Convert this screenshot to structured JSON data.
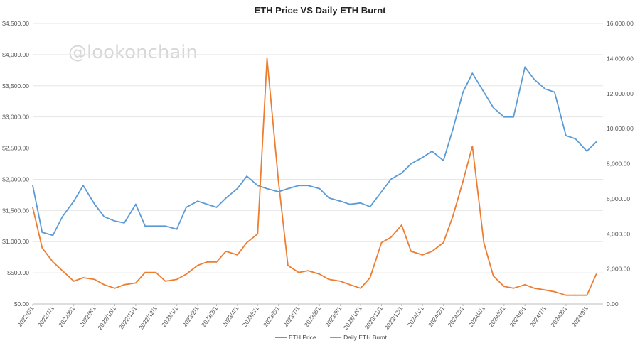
{
  "chart_data": {
    "type": "line",
    "title": "ETH Price VS Daily ETH Burnt",
    "watermark": "@lookonchain",
    "x": [
      "2022/6/1",
      "2022/6/15",
      "2022/7/1",
      "2022/7/15",
      "2022/8/1",
      "2022/8/15",
      "2022/9/1",
      "2022/9/15",
      "2022/10/1",
      "2022/10/15",
      "2022/11/1",
      "2022/11/15",
      "2022/12/1",
      "2022/12/15",
      "2023/1/1",
      "2023/1/15",
      "2023/2/1",
      "2023/2/15",
      "2023/3/1",
      "2023/3/15",
      "2023/4/1",
      "2023/4/15",
      "2023/5/1",
      "2023/5/15",
      "2023/6/1",
      "2023/6/15",
      "2023/7/1",
      "2023/7/15",
      "2023/8/1",
      "2023/8/15",
      "2023/9/1",
      "2023/9/15",
      "2023/10/1",
      "2023/10/15",
      "2023/11/1",
      "2023/11/15",
      "2023/12/1",
      "2023/12/15",
      "2024/1/1",
      "2024/1/15",
      "2024/2/1",
      "2024/2/15",
      "2024/3/1",
      "2024/3/15",
      "2024/4/1",
      "2024/4/15",
      "2024/5/1",
      "2024/5/15",
      "2024/6/1",
      "2024/6/15",
      "2024/7/1",
      "2024/7/15",
      "2024/8/1",
      "2024/8/15",
      "2024/9/1",
      "2024/9/15"
    ],
    "x_tick_labels": [
      "2022/6/1",
      "2022/7/1",
      "2022/8/1",
      "2022/9/1",
      "2022/10/1",
      "2022/11/1",
      "2022/12/1",
      "2023/1/1",
      "2023/2/1",
      "2023/3/1",
      "2023/4/1",
      "2023/5/1",
      "2023/6/1",
      "2023/7/1",
      "2023/8/1",
      "2023/9/1",
      "2023/10/1",
      "2023/11/1",
      "2023/12/1",
      "2024/1/1",
      "2024/2/1",
      "2024/3/1",
      "2024/4/1",
      "2024/5/1",
      "2024/6/1",
      "2024/7/1",
      "2024/8/1",
      "2024/9/1"
    ],
    "y_left": {
      "min": 0,
      "max": 4500,
      "ticks": [
        "$0.00",
        "$500.00",
        "$1,000.00",
        "$1,500.00",
        "$2,000.00",
        "$2,500.00",
        "$3,000.00",
        "$3,500.00",
        "$4,000.00",
        "$4,500.00"
      ]
    },
    "y_right": {
      "min": 0,
      "max": 16000,
      "ticks": [
        "0.00",
        "2,000.00",
        "4,000.00",
        "6,000.00",
        "8,000.00",
        "10,000.00",
        "12,000.00",
        "14,000.00",
        "16,000.00"
      ]
    },
    "series": [
      {
        "name": "ETH Price",
        "axis": "left",
        "color": "#5b9bd5",
        "values": [
          1900,
          1150,
          1100,
          1400,
          1650,
          1900,
          1600,
          1400,
          1330,
          1300,
          1600,
          1250,
          1250,
          1250,
          1200,
          1550,
          1650,
          1600,
          1550,
          1700,
          1850,
          2050,
          1900,
          1850,
          1800,
          1850,
          1900,
          1900,
          1850,
          1700,
          1650,
          1600,
          1620,
          1560,
          1800,
          2000,
          2100,
          2250,
          2350,
          2450,
          2300,
          2800,
          3400,
          3700,
          3400,
          3150,
          3000,
          3000,
          3800,
          3600,
          3450,
          3400,
          2700,
          2650,
          2450,
          2600
        ]
      },
      {
        "name": "Daily ETH Burnt",
        "axis": "right",
        "color": "#ed7d31",
        "values": [
          5500,
          3200,
          2400,
          1900,
          1300,
          1500,
          1400,
          1100,
          900,
          1100,
          1200,
          1800,
          1800,
          1300,
          1400,
          1700,
          2200,
          2400,
          2400,
          3000,
          2800,
          3500,
          4000,
          14000,
          7000,
          2200,
          1800,
          1900,
          1700,
          1400,
          1300,
          1100,
          900,
          1500,
          3500,
          3800,
          4500,
          3000,
          2800,
          3000,
          3500,
          5000,
          7000,
          9000,
          3500,
          1600,
          1000,
          900,
          1100,
          900,
          800,
          700,
          500,
          500,
          500,
          1700
        ]
      }
    ],
    "legend": "bottom"
  }
}
